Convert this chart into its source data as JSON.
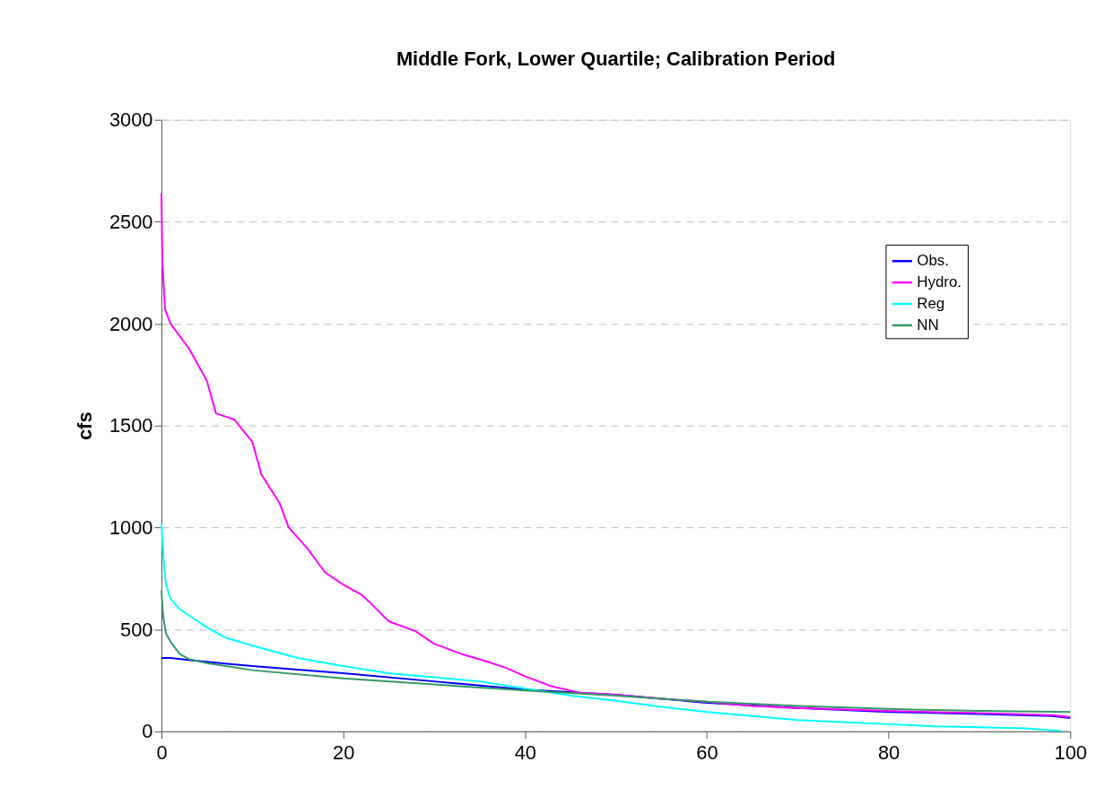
{
  "chart_data": {
    "type": "line",
    "title": "Middle Fork, Lower Quartile; Calibration Period",
    "ylabel": "cfs",
    "xlim": [
      0,
      100
    ],
    "xticks": [
      0,
      20,
      40,
      60,
      80,
      100
    ],
    "ylim": [
      0,
      3000
    ],
    "yticks": [
      0,
      500,
      1000,
      1500,
      2000,
      2500,
      3000
    ],
    "grid": "y",
    "legend": "top right",
    "marker": "none",
    "line_style": "solid",
    "series": [
      {
        "name": "Obs.",
        "color": "#0000ff",
        "x": [
          0,
          1,
          3,
          10,
          20,
          30,
          40,
          50,
          60,
          70,
          80,
          90,
          98,
          100
        ],
        "values": [
          360,
          360,
          350,
          320,
          285,
          245,
          205,
          180,
          140,
          115,
          95,
          85,
          75,
          65
        ]
      },
      {
        "name": "Hydro.",
        "color": "#ff00ff",
        "x": [
          0,
          0.1,
          0.4,
          1,
          2,
          3,
          4,
          5,
          6,
          8,
          10,
          11,
          13,
          14,
          16,
          18,
          20,
          22,
          23,
          25,
          28,
          30,
          33,
          36,
          38,
          40,
          43,
          46,
          50,
          55,
          60,
          65,
          70,
          80,
          90,
          98,
          100
        ],
        "values": [
          2640,
          2300,
          2070,
          2000,
          1940,
          1880,
          1800,
          1720,
          1560,
          1530,
          1420,
          1260,
          1120,
          1000,
          900,
          780,
          720,
          670,
          630,
          540,
          490,
          430,
          380,
          340,
          310,
          270,
          220,
          190,
          180,
          160,
          145,
          125,
          115,
          100,
          90,
          80,
          70
        ]
      },
      {
        "name": "Reg",
        "color": "#00ffff",
        "x": [
          0,
          0.3,
          0.5,
          1,
          2,
          3,
          5,
          7,
          10,
          15,
          20,
          25,
          30,
          35,
          40,
          45,
          50,
          55,
          60,
          65,
          70,
          75,
          80,
          85,
          90,
          95,
          99
        ],
        "values": [
          1020,
          800,
          720,
          650,
          600,
          570,
          510,
          460,
          420,
          360,
          320,
          285,
          265,
          245,
          210,
          175,
          150,
          120,
          95,
          75,
          55,
          45,
          35,
          25,
          20,
          15,
          2
        ]
      },
      {
        "name": "NN",
        "color": "#339966",
        "x": [
          0,
          0.2,
          0.5,
          1,
          2,
          3,
          5,
          10,
          20,
          30,
          40,
          50,
          60,
          70,
          80,
          90,
          100
        ],
        "values": [
          690,
          560,
          480,
          440,
          380,
          355,
          335,
          300,
          260,
          230,
          200,
          175,
          145,
          125,
          110,
          100,
          95
        ]
      }
    ]
  }
}
